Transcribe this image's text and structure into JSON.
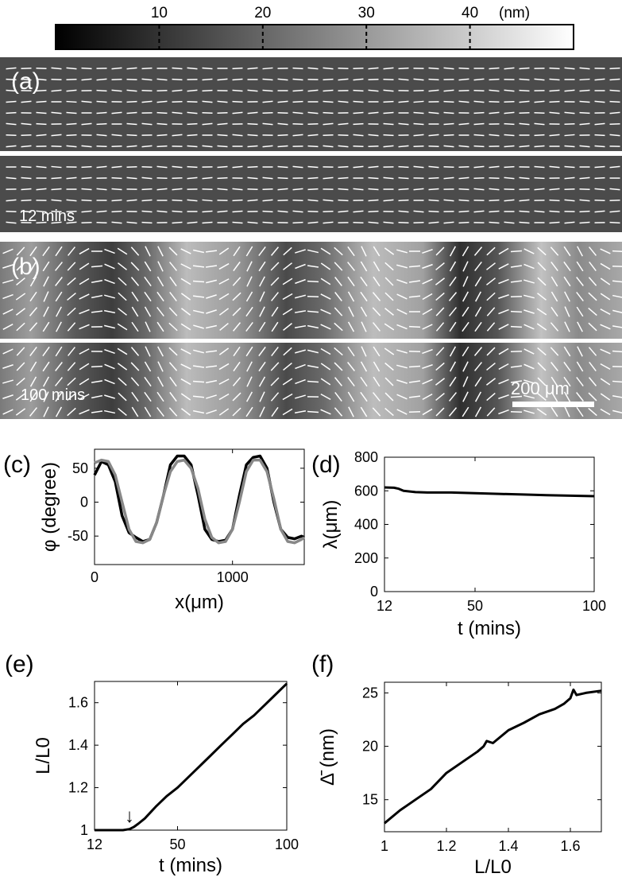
{
  "colorbar": {
    "ticks": [
      "10",
      "20",
      "30",
      "40"
    ],
    "unit": "(nm)",
    "range": [
      0,
      50
    ]
  },
  "panel_a": {
    "label": "(a)",
    "time": "12 mins",
    "mean_thickness_nm": 10
  },
  "panel_b": {
    "label": "(b)",
    "time": "100 mins",
    "scale_bar": "200 μm"
  },
  "chart_data": [
    {
      "panel": "(c)",
      "type": "line",
      "xlabel": "x(μm)",
      "ylabel": "φ (degree)",
      "xlim": [
        0,
        1520
      ],
      "ylim": [
        -92,
        78
      ],
      "xticks": [
        0,
        1000
      ],
      "yticks": [
        -50,
        0,
        50
      ],
      "series": [
        {
          "color": "#000000",
          "x": [
            0,
            50,
            100,
            150,
            200,
            250,
            300,
            350,
            400,
            450,
            500,
            550,
            600,
            650,
            700,
            750,
            800,
            850,
            900,
            950,
            1000,
            1050,
            1100,
            1150,
            1200,
            1250,
            1300,
            1350,
            1400,
            1450,
            1500,
            1520
          ],
          "y": [
            40,
            60,
            55,
            30,
            -20,
            -45,
            -52,
            -58,
            -55,
            -30,
            10,
            55,
            68,
            68,
            55,
            10,
            -40,
            -55,
            -58,
            -56,
            -40,
            10,
            55,
            66,
            68,
            50,
            0,
            -40,
            -52,
            -54,
            -50,
            -52
          ]
        },
        {
          "color": "#888888",
          "x": [
            0,
            50,
            100,
            150,
            200,
            250,
            300,
            350,
            400,
            450,
            500,
            550,
            600,
            650,
            700,
            750,
            800,
            850,
            900,
            950,
            1000,
            1050,
            1100,
            1150,
            1200,
            1250,
            1300,
            1350,
            1400,
            1450,
            1500,
            1520
          ],
          "y": [
            58,
            62,
            60,
            40,
            0,
            -40,
            -58,
            -60,
            -55,
            -30,
            10,
            45,
            60,
            62,
            50,
            20,
            -25,
            -52,
            -60,
            -58,
            -40,
            0,
            45,
            62,
            62,
            45,
            5,
            -40,
            -58,
            -60,
            -55,
            -52
          ]
        }
      ]
    },
    {
      "panel": "(d)",
      "type": "line",
      "xlabel": "t (mins)",
      "ylabel": "λ(μm)",
      "xlim": [
        12,
        100
      ],
      "ylim": [
        0,
        800
      ],
      "xticks": [
        12,
        50,
        100
      ],
      "yticks": [
        0,
        200,
        400,
        600,
        800
      ],
      "series": [
        {
          "color": "#000000",
          "x": [
            12,
            16,
            18,
            20,
            25,
            30,
            40,
            50,
            60,
            70,
            80,
            90,
            100
          ],
          "y": [
            620,
            618,
            612,
            600,
            592,
            590,
            590,
            586,
            582,
            578,
            574,
            571,
            568
          ]
        }
      ]
    },
    {
      "panel": "(e)",
      "type": "line",
      "xlabel": "t (mins)",
      "ylabel": "L/L0",
      "xlim": [
        12,
        100
      ],
      "ylim": [
        1,
        1.7
      ],
      "xticks": [
        12,
        50,
        100
      ],
      "yticks": [
        1,
        1.2,
        1.4,
        1.6
      ],
      "annotation": "↓",
      "annotation_x": 28,
      "series": [
        {
          "color": "#000000",
          "x": [
            12,
            20,
            25,
            28,
            30,
            32,
            35,
            40,
            45,
            50,
            55,
            60,
            65,
            70,
            75,
            80,
            85,
            90,
            95,
            100
          ],
          "y": [
            1.0,
            1.0,
            1.0,
            1.005,
            1.015,
            1.03,
            1.055,
            1.11,
            1.16,
            1.2,
            1.25,
            1.3,
            1.35,
            1.4,
            1.45,
            1.5,
            1.54,
            1.59,
            1.64,
            1.69
          ]
        }
      ]
    },
    {
      "panel": "(f)",
      "type": "line",
      "xlabel": "L/L0",
      "ylabel": "Δ̄ (nm)",
      "xlim": [
        1,
        1.7
      ],
      "ylim": [
        12,
        26
      ],
      "xticks": [
        1,
        1.2,
        1.4,
        1.6
      ],
      "yticks": [
        15,
        20,
        25
      ],
      "series": [
        {
          "color": "#000000",
          "x": [
            1.0,
            1.05,
            1.1,
            1.15,
            1.2,
            1.25,
            1.3,
            1.32,
            1.33,
            1.35,
            1.4,
            1.45,
            1.5,
            1.55,
            1.58,
            1.6,
            1.61,
            1.62,
            1.65,
            1.7
          ],
          "y": [
            12.8,
            14.0,
            15.0,
            16.0,
            17.5,
            18.5,
            19.5,
            20.0,
            20.5,
            20.3,
            21.5,
            22.2,
            23.0,
            23.5,
            24.0,
            24.5,
            25.3,
            24.8,
            25.0,
            25.2
          ]
        }
      ]
    }
  ]
}
